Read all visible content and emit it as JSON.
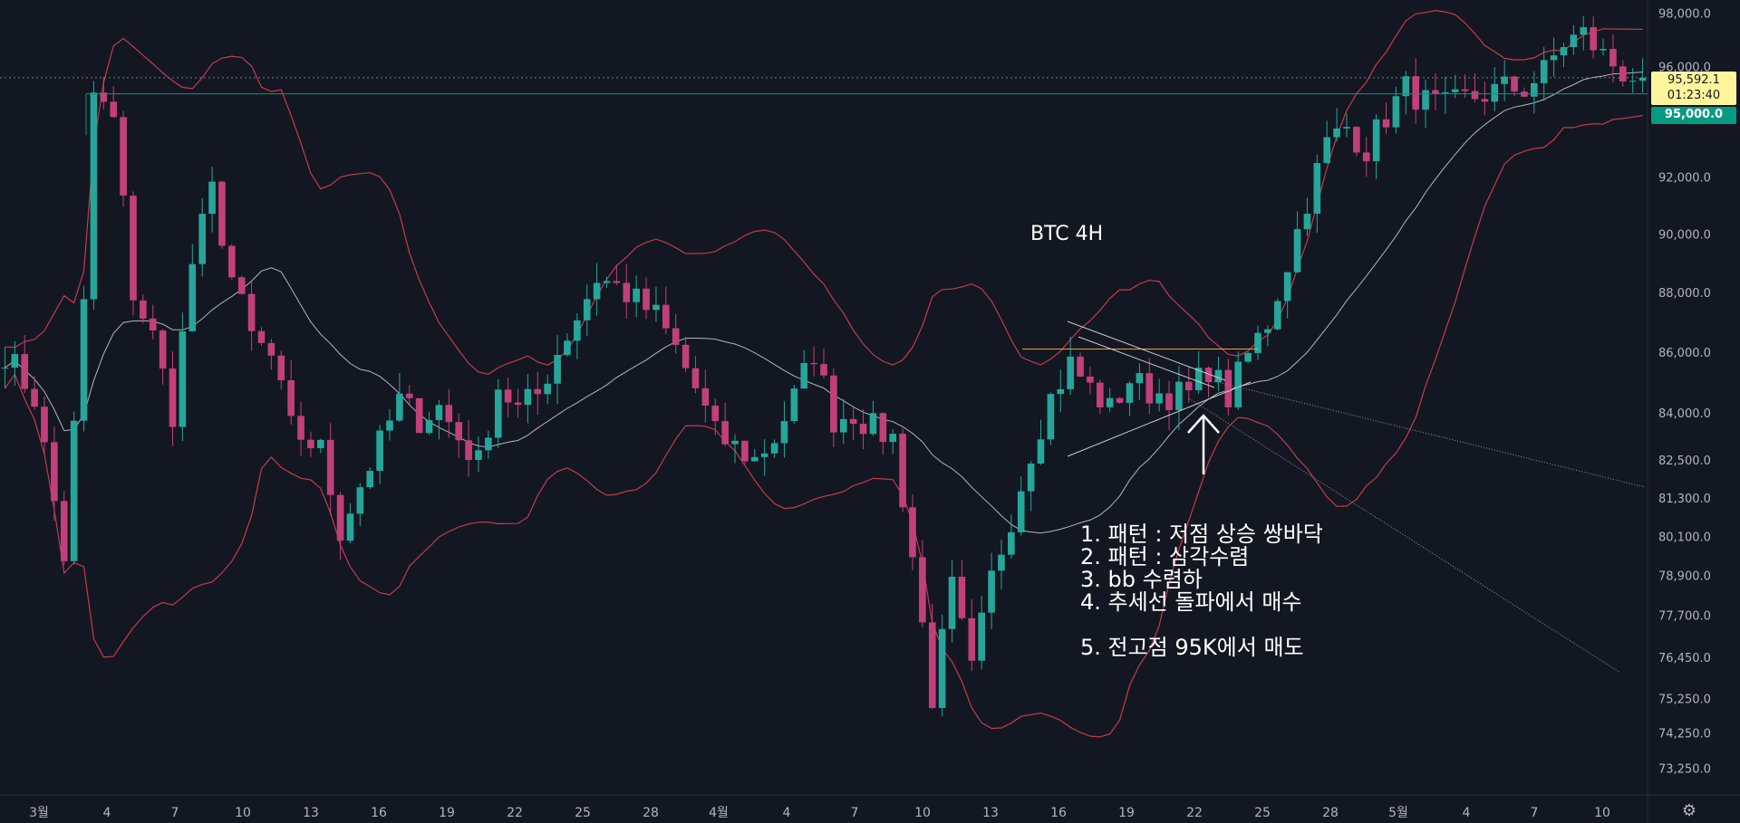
{
  "chart_data": {
    "type": "candlestick",
    "title": "BTC 4H",
    "x_tick_labels": [
      "3월",
      "4",
      "7",
      "10",
      "13",
      "16",
      "19",
      "22",
      "25",
      "28",
      "4월",
      "4",
      "7",
      "10",
      "13",
      "16",
      "19",
      "22",
      "25",
      "28",
      "5월",
      "4",
      "7",
      "10"
    ],
    "y_tick_labels": [
      "98,000.0",
      "96,000.0",
      "92,000.0",
      "90,000.0",
      "88,000.0",
      "86,000.0",
      "84,000.0",
      "82,500.0",
      "81,300.0",
      "80,100.0",
      "78,900.0",
      "77,700.0",
      "76,450.0",
      "75,250.0",
      "74,250.0",
      "73,250.0"
    ],
    "ylim": [
      72500,
      98500
    ],
    "y_scale": "log",
    "price_path": [
      [
        0,
        86000
      ],
      [
        3,
        84500
      ],
      [
        6,
        79500
      ],
      [
        8,
        87500
      ],
      [
        9,
        95000
      ],
      [
        11,
        94000
      ],
      [
        13,
        88000
      ],
      [
        15,
        86500
      ],
      [
        17,
        84000
      ],
      [
        19,
        89000
      ],
      [
        21,
        91500
      ],
      [
        23,
        88500
      ],
      [
        25,
        86500
      ],
      [
        27,
        85800
      ],
      [
        29,
        83500
      ],
      [
        32,
        82800
      ],
      [
        34,
        80300
      ],
      [
        36,
        81700
      ],
      [
        38,
        83000
      ],
      [
        40,
        84400
      ],
      [
        42,
        83800
      ],
      [
        44,
        84200
      ],
      [
        46,
        83200
      ],
      [
        48,
        82400
      ],
      [
        50,
        84900
      ],
      [
        52,
        84100
      ],
      [
        54,
        84600
      ],
      [
        56,
        86000
      ],
      [
        58,
        87200
      ],
      [
        60,
        88500
      ],
      [
        62,
        88200
      ],
      [
        64,
        87700
      ],
      [
        66,
        87200
      ],
      [
        68,
        86100
      ],
      [
        70,
        84800
      ],
      [
        72,
        83300
      ],
      [
        74,
        82900
      ],
      [
        76,
        82500
      ],
      [
        78,
        83200
      ],
      [
        80,
        84500
      ],
      [
        82,
        86000
      ],
      [
        84,
        83800
      ],
      [
        86,
        84000
      ],
      [
        88,
        83500
      ],
      [
        90,
        83200
      ],
      [
        92,
        79500
      ],
      [
        94,
        75300
      ],
      [
        96,
        78500
      ],
      [
        98,
        76000
      ],
      [
        100,
        78800
      ],
      [
        102,
        80700
      ],
      [
        104,
        82800
      ],
      [
        106,
        84500
      ],
      [
        108,
        85600
      ],
      [
        110,
        84800
      ],
      [
        112,
        84100
      ],
      [
        114,
        85100
      ],
      [
        116,
        84700
      ],
      [
        118,
        84600
      ],
      [
        120,
        84600
      ],
      [
        122,
        85500
      ],
      [
        124,
        84500
      ],
      [
        126,
        85900
      ],
      [
        128,
        87000
      ],
      [
        130,
        89000
      ],
      [
        132,
        91200
      ],
      [
        134,
        93200
      ],
      [
        136,
        93800
      ],
      [
        138,
        93000
      ],
      [
        140,
        94200
      ],
      [
        142,
        95200
      ],
      [
        144,
        94700
      ],
      [
        146,
        94500
      ],
      [
        148,
        94800
      ],
      [
        150,
        95000
      ],
      [
        152,
        95200
      ],
      [
        154,
        95200
      ],
      [
        156,
        95800
      ],
      [
        158,
        96900
      ],
      [
        160,
        97200
      ],
      [
        162,
        96400
      ],
      [
        164,
        95800
      ],
      [
        166,
        95592.1
      ]
    ],
    "last_price": "95,592.1",
    "countdown": "01:23:40",
    "horizontal_levels": [
      {
        "label": "95,000.0",
        "value": 95000,
        "color": "#089981"
      },
      {
        "value": 86100,
        "color": "#f0a040"
      }
    ],
    "indicator": "Bollinger Bands",
    "annotation_lines": [
      "1. 패턴 : 저점 상승 쌍바닥",
      "2. 패턴 : 삼각수렴",
      "3. bb 수렴하",
      "4. 추세선 돌파에서 매수",
      "",
      "5. 전고점 95K에서 매도"
    ],
    "colors": {
      "background": "#131722",
      "up": "#26a69a",
      "down": "#c2407a",
      "band": "#c23b4d",
      "basis": "#b2b5be",
      "text": "#b2b5be"
    }
  },
  "ui": {
    "settings_icon": "gear-icon"
  }
}
